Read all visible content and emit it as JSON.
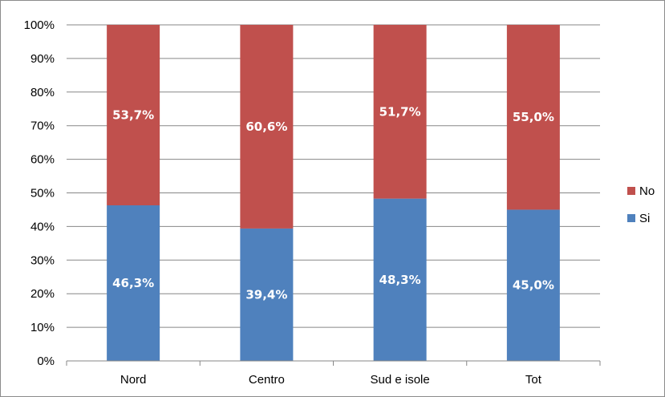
{
  "chart_data": {
    "type": "bar",
    "stacked": true,
    "categories": [
      "Nord",
      "Centro",
      "Sud e isole",
      "Tot"
    ],
    "series": [
      {
        "name": "Si",
        "values": [
          46.3,
          39.4,
          48.3,
          45.0
        ],
        "labels": [
          "46,3%",
          "39,4%",
          "48,3%",
          "45,0%"
        ],
        "color": "#4f81bd"
      },
      {
        "name": "No",
        "values": [
          53.7,
          60.6,
          51.7,
          55.0
        ],
        "labels": [
          "53,7%",
          "60,6%",
          "51,7%",
          "55,0%"
        ],
        "color": "#c0504d"
      }
    ],
    "ylim": [
      0,
      100
    ],
    "yticks": [
      "0%",
      "10%",
      "20%",
      "30%",
      "40%",
      "50%",
      "60%",
      "70%",
      "80%",
      "90%",
      "100%"
    ],
    "grid": true,
    "legend": {
      "placement": "right",
      "entries": [
        "No",
        "Si"
      ]
    }
  }
}
